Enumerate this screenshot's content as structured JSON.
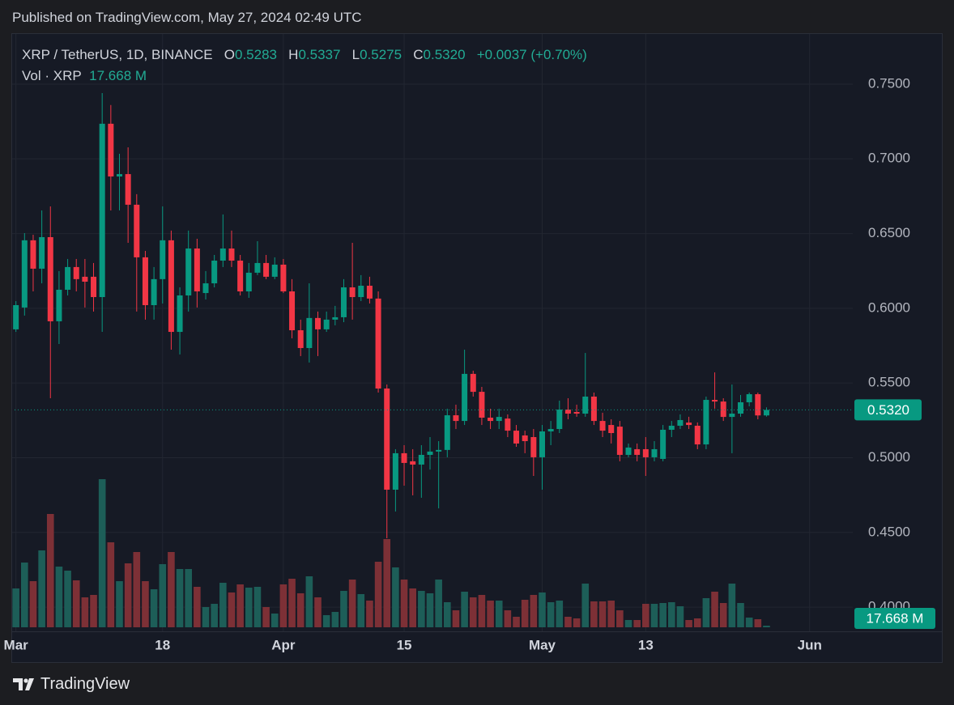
{
  "header": {
    "published": "Published on TradingView.com, May 27, 2024 02:49 UTC"
  },
  "legend": {
    "symbol": "XRP / TetherUS, 1D, BINANCE",
    "open_label": "O",
    "open": "0.5283",
    "high_label": "H",
    "high": "0.5337",
    "low_label": "L",
    "low": "0.5275",
    "close_label": "C",
    "close": "0.5320",
    "change": "+0.0037 (+0.70%)"
  },
  "footer": {
    "brand": "TradingView"
  },
  "chart_data": {
    "type": "candlestick",
    "x": [
      "2024-03-01",
      "2024-03-02",
      "2024-03-03",
      "2024-03-04",
      "2024-03-05",
      "2024-03-06",
      "2024-03-07",
      "2024-03-08",
      "2024-03-09",
      "2024-03-10",
      "2024-03-11",
      "2024-03-12",
      "2024-03-13",
      "2024-03-14",
      "2024-03-15",
      "2024-03-16",
      "2024-03-17",
      "2024-03-18",
      "2024-03-19",
      "2024-03-20",
      "2024-03-21",
      "2024-03-22",
      "2024-03-23",
      "2024-03-24",
      "2024-03-25",
      "2024-03-26",
      "2024-03-27",
      "2024-03-28",
      "2024-03-29",
      "2024-03-30",
      "2024-03-31",
      "2024-04-01",
      "2024-04-02",
      "2024-04-03",
      "2024-04-04",
      "2024-04-05",
      "2024-04-06",
      "2024-04-07",
      "2024-04-08",
      "2024-04-09",
      "2024-04-10",
      "2024-04-11",
      "2024-04-12",
      "2024-04-13",
      "2024-04-14",
      "2024-04-15",
      "2024-04-16",
      "2024-04-17",
      "2024-04-18",
      "2024-04-19",
      "2024-04-20",
      "2024-04-21",
      "2024-04-22",
      "2024-04-23",
      "2024-04-24",
      "2024-04-25",
      "2024-04-26",
      "2024-04-27",
      "2024-04-28",
      "2024-04-29",
      "2024-04-30",
      "2024-05-01",
      "2024-05-02",
      "2024-05-03",
      "2024-05-04",
      "2024-05-05",
      "2024-05-06",
      "2024-05-07",
      "2024-05-08",
      "2024-05-09",
      "2024-05-10",
      "2024-05-11",
      "2024-05-12",
      "2024-05-13",
      "2024-05-14",
      "2024-05-15",
      "2024-05-16",
      "2024-05-17",
      "2024-05-18",
      "2024-05-19",
      "2024-05-20",
      "2024-05-21",
      "2024-05-22",
      "2024-05-23",
      "2024-05-24",
      "2024-05-25",
      "2024-05-26",
      "2024-05-27"
    ],
    "open": [
      0.5859,
      0.6005,
      0.6455,
      0.6265,
      0.6476,
      0.5913,
      0.6124,
      0.6276,
      0.6211,
      0.6211,
      0.6075,
      0.7235,
      0.6882,
      0.6898,
      0.6693,
      0.6341,
      0.6021,
      0.6195,
      0.6455,
      0.5842,
      0.6086,
      0.64,
      0.6102,
      0.6167,
      0.6319,
      0.64,
      0.6319,
      0.6113,
      0.6238,
      0.6303,
      0.6211,
      0.6292,
      0.6113,
      0.5853,
      0.5734,
      0.5935,
      0.5859,
      0.5924,
      0.594,
      0.614,
      0.6075,
      0.6151,
      0.6065,
      0.5463,
      0.4786,
      0.503,
      0.4976,
      0.4954,
      0.5019,
      0.5041,
      0.5052,
      0.5284,
      0.5246,
      0.5561,
      0.5441,
      0.5268,
      0.5246,
      0.5262,
      0.5181,
      0.5149,
      0.5138,
      0.5003,
      0.5176,
      0.5192,
      0.5322,
      0.5306,
      0.5295,
      0.5409,
      0.5246,
      0.5219,
      0.5208,
      0.5019,
      0.5057,
      0.5057,
      0.5003,
      0.4992,
      0.5187,
      0.5214,
      0.5235,
      0.5214,
      0.5089,
      0.5387,
      0.5376,
      0.5273,
      0.5295,
      0.5371,
      0.5425,
      0.5283
    ],
    "high": [
      0.6048,
      0.6503,
      0.6492,
      0.6655,
      0.6682,
      0.6249,
      0.633,
      0.633,
      0.633,
      0.6303,
      0.744,
      0.736,
      0.7034,
      0.7077,
      0.6764,
      0.6384,
      0.6276,
      0.6682,
      0.652,
      0.614,
      0.652,
      0.6465,
      0.6249,
      0.6357,
      0.6628,
      0.652,
      0.6357,
      0.6303,
      0.6449,
      0.6357,
      0.6341,
      0.633,
      0.6195,
      0.5924,
      0.6167,
      0.5978,
      0.5978,
      0.6016,
      0.6195,
      0.6438,
      0.6222,
      0.6211,
      0.6113,
      0.549,
      0.5057,
      0.5084,
      0.5057,
      0.5084,
      0.5138,
      0.5111,
      0.5328,
      0.5355,
      0.5723,
      0.5582,
      0.5474,
      0.5328,
      0.5328,
      0.529,
      0.5219,
      0.5181,
      0.5192,
      0.5219,
      0.5246,
      0.5382,
      0.5398,
      0.5355,
      0.5701,
      0.5436,
      0.5301,
      0.5257,
      0.5246,
      0.5095,
      0.5095,
      0.5138,
      0.5111,
      0.5219,
      0.5246,
      0.529,
      0.5274,
      0.5236,
      0.5409,
      0.5571,
      0.5398,
      0.549,
      0.542,
      0.5436,
      0.5436,
      0.5337
    ],
    "low": [
      0.5842,
      0.5951,
      0.6113,
      0.6167,
      0.5398,
      0.5761,
      0.6086,
      0.6113,
      0.6005,
      0.5978,
      0.5842,
      0.6655,
      0.6655,
      0.6438,
      0.5978,
      0.5924,
      0.5924,
      0.6032,
      0.5723,
      0.5691,
      0.5978,
      0.6005,
      0.6059,
      0.614,
      0.6276,
      0.6276,
      0.6086,
      0.607,
      0.6222,
      0.6195,
      0.6195,
      0.6102,
      0.5799,
      0.568,
      0.5637,
      0.568,
      0.5842,
      0.5886,
      0.5907,
      0.5924,
      0.6048,
      0.6032,
      0.5436,
      0.4461,
      0.464,
      0.4813,
      0.4748,
      0.4732,
      0.4921,
      0.4661,
      0.5003,
      0.5192,
      0.5219,
      0.5409,
      0.5219,
      0.5192,
      0.5192,
      0.5138,
      0.5073,
      0.503,
      0.4878,
      0.4786,
      0.5084,
      0.5165,
      0.5257,
      0.5274,
      0.5274,
      0.5219,
      0.5138,
      0.5095,
      0.4976,
      0.5003,
      0.4976,
      0.4878,
      0.4976,
      0.4976,
      0.5138,
      0.5192,
      0.5192,
      0.5057,
      0.5057,
      0.5328,
      0.5246,
      0.503,
      0.5274,
      0.5344,
      0.5257,
      0.5275
    ],
    "close": [
      0.6021,
      0.6455,
      0.6265,
      0.6476,
      0.5913,
      0.6124,
      0.6276,
      0.6195,
      0.6178,
      0.6075,
      0.7235,
      0.6882,
      0.6898,
      0.6693,
      0.6341,
      0.6021,
      0.6195,
      0.6455,
      0.5842,
      0.6086,
      0.64,
      0.6113,
      0.6167,
      0.6319,
      0.64,
      0.6319,
      0.6113,
      0.6238,
      0.6303,
      0.6211,
      0.6292,
      0.6113,
      0.5853,
      0.5734,
      0.5935,
      0.5859,
      0.5924,
      0.594,
      0.614,
      0.6075,
      0.6151,
      0.6065,
      0.5463,
      0.4786,
      0.503,
      0.4965,
      0.4954,
      0.5019,
      0.5041,
      0.5052,
      0.5284,
      0.5246,
      0.5561,
      0.5441,
      0.5268,
      0.5246,
      0.5273,
      0.5181,
      0.5095,
      0.5111,
      0.5003,
      0.5176,
      0.5192,
      0.5322,
      0.5295,
      0.5295,
      0.5409,
      0.5246,
      0.5181,
      0.5165,
      0.5019,
      0.5068,
      0.5019,
      0.5003,
      0.5057,
      0.5187,
      0.5214,
      0.5252,
      0.5219,
      0.5089,
      0.5387,
      0.5376,
      0.5273,
      0.5295,
      0.5371,
      0.5425,
      0.5283,
      0.532
    ],
    "up_color": "#089981",
    "down_color": "#f23645",
    "last_price_label": "0.5320",
    "volume": {
      "name": "Vol · XRP",
      "value_label": "17.668 M",
      "up_color": "#1d5e58",
      "down_color": "#7d3036",
      "values": [
        432,
        720,
        513,
        855,
        1260,
        675,
        630,
        522,
        333,
        360,
        1647,
        945,
        513,
        711,
        837,
        513,
        423,
        702,
        837,
        648,
        648,
        450,
        225,
        261,
        495,
        387,
        477,
        441,
        450,
        225,
        153,
        477,
        540,
        378,
        567,
        333,
        135,
        171,
        405,
        531,
        369,
        297,
        729,
        981,
        666,
        531,
        432,
        405,
        378,
        531,
        279,
        189,
        396,
        333,
        360,
        297,
        297,
        189,
        117,
        306,
        360,
        387,
        279,
        297,
        117,
        99,
        486,
        288,
        288,
        297,
        189,
        81,
        81,
        261,
        261,
        270,
        279,
        234,
        81,
        99,
        324,
        396,
        270,
        486,
        270,
        108,
        90,
        17.668
      ]
    },
    "xlim": [
      "2024-02-29",
      "2024-06-06"
    ],
    "xticks": [
      {
        "value": "2024-03-01",
        "label": "Mar"
      },
      {
        "value": "2024-03-18",
        "label": "18"
      },
      {
        "value": "2024-04-01",
        "label": "Apr"
      },
      {
        "value": "2024-04-15",
        "label": "15"
      },
      {
        "value": "2024-05-01",
        "label": "May"
      },
      {
        "value": "2024-05-13",
        "label": "13"
      },
      {
        "value": "2024-06-01",
        "label": "Jun"
      }
    ],
    "ylim": [
      0.3838,
      0.7841
    ],
    "yticks": [
      {
        "value": 0.4,
        "label": "0.4000"
      },
      {
        "value": 0.45,
        "label": "0.4500"
      },
      {
        "value": 0.5,
        "label": "0.5000"
      },
      {
        "value": 0.55,
        "label": "0.5500"
      },
      {
        "value": 0.6,
        "label": "0.6000"
      },
      {
        "value": 0.65,
        "label": "0.6500"
      },
      {
        "value": 0.7,
        "label": "0.7000"
      },
      {
        "value": 0.75,
        "label": "0.7500"
      }
    ],
    "grid": true
  }
}
